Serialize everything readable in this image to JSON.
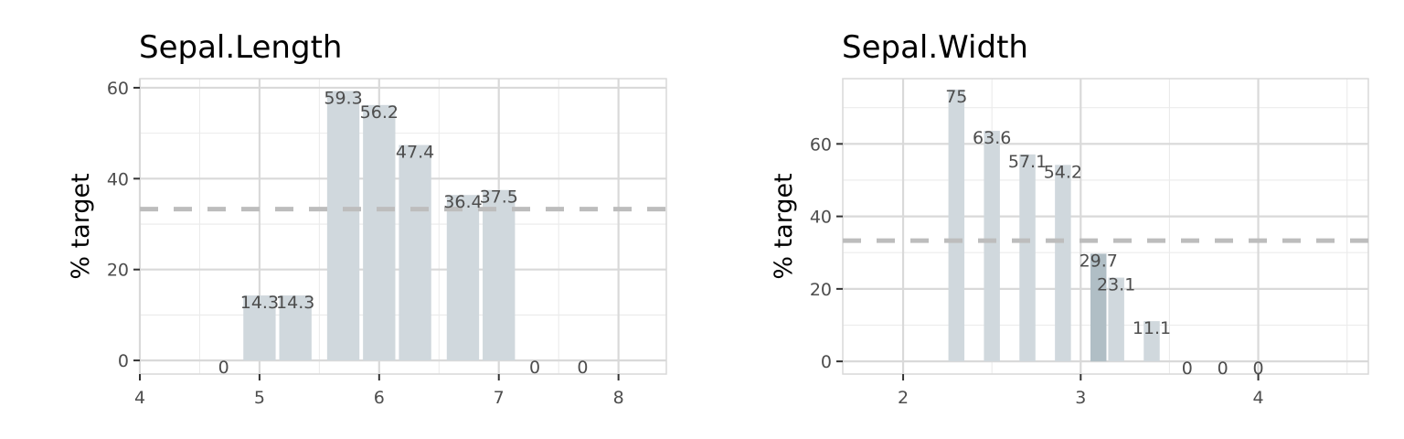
{
  "chart_data": [
    {
      "type": "bar",
      "title": "Sepal.Length",
      "xlabel": "",
      "ylabel": "% target",
      "xlim": [
        4,
        8.4
      ],
      "ylim": [
        -3,
        62
      ],
      "xticks": [
        4,
        5,
        6,
        7,
        8
      ],
      "yticks": [
        0,
        20,
        40,
        60
      ],
      "reference_line": 33.3,
      "x": [
        4.7,
        5.0,
        5.3,
        5.7,
        6.0,
        6.3,
        6.7,
        7.0,
        7.3,
        7.7
      ],
      "values": [
        0,
        14.3,
        14.3,
        59.3,
        56.2,
        47.4,
        36.4,
        37.5,
        0,
        0
      ],
      "labels": [
        "0",
        "14.3",
        "14.3",
        "59.3",
        "56.2",
        "47.4",
        "36.4",
        "37.5",
        "0",
        "0"
      ],
      "bar_width": 0.27,
      "colors": {
        "bar": "#d0d8dd",
        "bar_highlight": "#b0bec5",
        "reference_line": "#bdbdbd"
      },
      "grid": true
    },
    {
      "type": "bar",
      "title": "Sepal.Width",
      "xlabel": "",
      "ylabel": "% target",
      "xlim": [
        1.66,
        4.62
      ],
      "ylim": [
        -3.5,
        78
      ],
      "xticks": [
        2,
        3,
        4
      ],
      "yticks": [
        0,
        20,
        40,
        60
      ],
      "reference_line": 33.3,
      "x": [
        2.3,
        2.5,
        2.7,
        2.9,
        3.1,
        3.2,
        3.4,
        3.6,
        3.8,
        4.0
      ],
      "values": [
        75,
        63.6,
        57.1,
        54.2,
        29.7,
        23.1,
        11.1,
        0,
        0,
        0
      ],
      "labels": [
        "75",
        "63.6",
        "57.1",
        "54.2",
        "29.7",
        "23.1",
        "11.1",
        "0",
        "0",
        "0"
      ],
      "highlight": [
        false,
        false,
        false,
        false,
        true,
        false,
        false,
        false,
        false,
        false
      ],
      "bar_width": 0.09,
      "colors": {
        "bar": "#d0d8dd",
        "bar_highlight": "#b0bec5",
        "reference_line": "#bdbdbd"
      },
      "grid": true
    }
  ]
}
